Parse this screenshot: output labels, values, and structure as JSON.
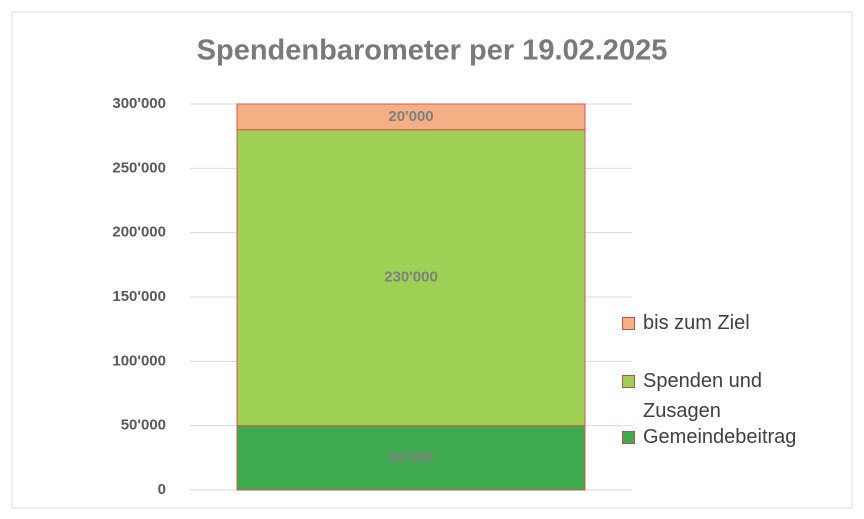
{
  "chart_data": {
    "type": "stacked_bar",
    "title": "Spendenbarometer per 19.02.2025",
    "categories": [
      null
    ],
    "series": [
      {
        "name": "Gemeindebeitrag",
        "color": "#3dab4e",
        "values": [
          50000
        ],
        "value_labels": [
          "50'000"
        ]
      },
      {
        "name": "Spenden und Zusagen",
        "color": "#9dd055",
        "values": [
          230000
        ],
        "value_labels": [
          "230'000"
        ]
      },
      {
        "name": "bis zum Ziel",
        "color": "#f4b084",
        "values": [
          20000
        ],
        "value_labels": [
          "20'000"
        ]
      }
    ],
    "ylim": [
      0,
      300000
    ],
    "yticks": [
      0,
      {
        "value": 50000,
        "label": "50'000"
      },
      {
        "value": 100000,
        "label": "100'000"
      },
      {
        "value": 150000,
        "label": "150'000"
      },
      {
        "value": 200000,
        "label": "200'000"
      },
      {
        "value": 250000,
        "label": "250'000"
      },
      {
        "value": 300000,
        "label": "300'000"
      }
    ],
    "grid": true,
    "legend": "right"
  }
}
